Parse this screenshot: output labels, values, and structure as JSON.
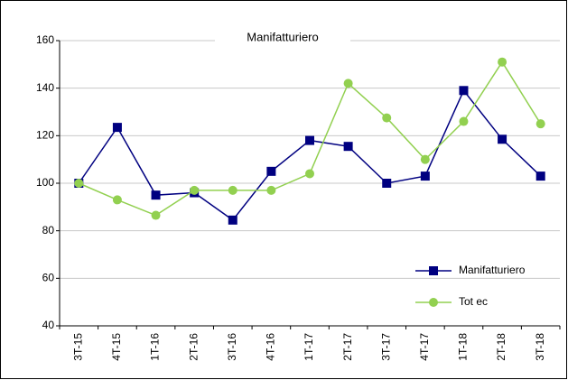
{
  "chart_data": {
    "type": "line",
    "title": "Manifatturiero",
    "categories": [
      "3T-15",
      "4T-15",
      "1T-16",
      "2T-16",
      "3T-16",
      "4T-16",
      "1T-17",
      "2T-17",
      "3T-17",
      "4T-17",
      "1T-18",
      "2T-18",
      "3T-18"
    ],
    "series": [
      {
        "name": "Manifatturiero",
        "color": "#000080",
        "marker": "square",
        "values": [
          100,
          123.5,
          95,
          96,
          84.5,
          105,
          118,
          115.5,
          100,
          103,
          139,
          118.5,
          103
        ]
      },
      {
        "name": "Tot ec",
        "color": "#92d050",
        "marker": "circle",
        "values": [
          100,
          93,
          86.5,
          97,
          97,
          97,
          104,
          142,
          127.5,
          110,
          126,
          151,
          125
        ]
      }
    ],
    "ylim": [
      40,
      160
    ],
    "yticks": [
      40,
      60,
      80,
      100,
      120,
      140,
      160
    ],
    "grid": true,
    "legend": "lower right"
  }
}
